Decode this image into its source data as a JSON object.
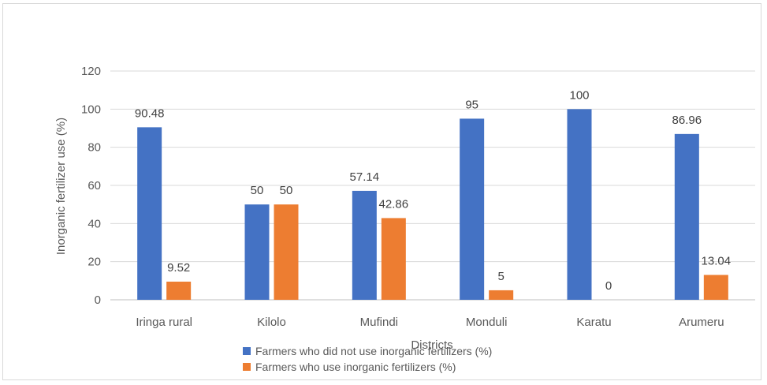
{
  "chart_data": {
    "type": "bar",
    "title": "",
    "xlabel": "Districts",
    "ylabel": "Inorganic fertilizer use (%)",
    "ylim": [
      0,
      120
    ],
    "yticks": [
      0,
      20,
      40,
      60,
      80,
      100,
      120
    ],
    "grid": true,
    "legend_position": "bottom",
    "categories": [
      "Iringa rural",
      "Kilolo",
      "Mufindi",
      "Monduli",
      "Karatu",
      "Arumeru"
    ],
    "series": [
      {
        "name": "Farmers who did not use inorganic fertilizers (%)",
        "color": "#4472c4",
        "values": [
          90.48,
          50,
          57.14,
          95,
          100,
          86.96
        ],
        "labels": [
          "90.48",
          "50",
          "57.14",
          "95",
          "100",
          "86.96"
        ]
      },
      {
        "name": "Farmers who use inorganic fertilizers (%)",
        "color": "#ed7d31",
        "values": [
          9.52,
          50,
          42.86,
          5,
          0,
          13.04
        ],
        "labels": [
          "9.52",
          "50",
          "42.86",
          "5",
          "0",
          "13.04"
        ]
      }
    ]
  }
}
